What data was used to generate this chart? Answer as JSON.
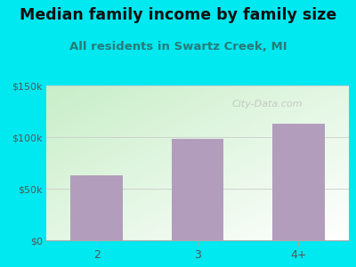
{
  "title": "Median family income by family size",
  "subtitle": "All residents in Swartz Creek, MI",
  "categories": [
    "2",
    "3",
    "4+"
  ],
  "values": [
    63000,
    98000,
    113000
  ],
  "bar_color": "#b39dbd",
  "background_color": "#00e8f0",
  "plot_bg_top_left": "#c8eec8",
  "plot_bg_bottom_right": "#ffffff",
  "ylim": [
    0,
    150000
  ],
  "yticks": [
    0,
    50000,
    100000,
    150000
  ],
  "ytick_labels": [
    "$0",
    "$50k",
    "$100k",
    "$150k"
  ],
  "title_fontsize": 12.5,
  "subtitle_fontsize": 9.5,
  "subtitle_color": "#2a7a7a",
  "title_color": "#111111",
  "watermark": "City-Data.com",
  "watermark_color": "#aaaaaa",
  "tick_color": "#555555",
  "grid_color": "#cccccc"
}
